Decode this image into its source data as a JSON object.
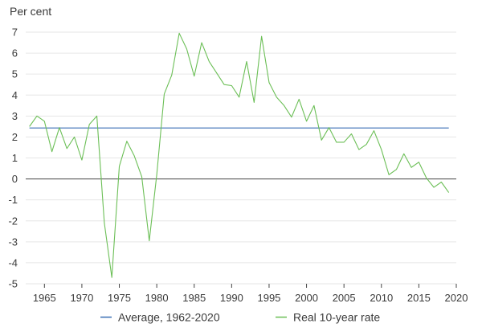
{
  "chart_data": {
    "type": "line",
    "ylabel": "Per cent",
    "ylim": [
      -5,
      7
    ],
    "yticks": [
      -5,
      -4,
      -3,
      -2,
      -1,
      0,
      1,
      2,
      3,
      4,
      5,
      6,
      7
    ],
    "xlim": [
      1962.5,
      2020
    ],
    "xticks": [
      1965,
      1970,
      1975,
      1980,
      1985,
      1990,
      1995,
      2000,
      2005,
      2010,
      2015,
      2020
    ],
    "grid": true,
    "legend_position": "bottom",
    "series": [
      {
        "name": "Average, 1962-2020",
        "color": "#3a6fb5",
        "x": [
          1963,
          2019
        ],
        "y": [
          2.43,
          2.43
        ]
      },
      {
        "name": "Real 10-year rate",
        "color": "#6cbf57",
        "x": [
          1963,
          1964,
          1965,
          1966,
          1967,
          1968,
          1969,
          1970,
          1971,
          1972,
          1973,
          1974,
          1975,
          1976,
          1977,
          1978,
          1979,
          1980,
          1981,
          1982,
          1983,
          1984,
          1985,
          1986,
          1987,
          1988,
          1989,
          1990,
          1991,
          1992,
          1993,
          1994,
          1995,
          1996,
          1997,
          1998,
          1999,
          2000,
          2001,
          2002,
          2003,
          2004,
          2005,
          2006,
          2007,
          2008,
          2009,
          2010,
          2011,
          2012,
          2013,
          2014,
          2015,
          2016,
          2017,
          2018,
          2019
        ],
        "y": [
          2.5,
          3.0,
          2.75,
          1.3,
          2.45,
          1.45,
          2.0,
          0.9,
          2.6,
          3.0,
          -2.1,
          -4.7,
          0.6,
          1.8,
          1.1,
          0.1,
          -2.95,
          0.2,
          4.05,
          4.95,
          6.95,
          6.2,
          4.9,
          6.5,
          5.6,
          5.05,
          4.5,
          4.45,
          3.9,
          5.6,
          3.65,
          6.8,
          4.6,
          3.9,
          3.5,
          2.95,
          3.8,
          2.75,
          3.5,
          1.85,
          2.45,
          1.75,
          1.75,
          2.15,
          1.4,
          1.65,
          2.3,
          1.4,
          0.2,
          0.45,
          1.2,
          0.55,
          0.8,
          0.05,
          -0.4,
          -0.15,
          -0.65
        ]
      }
    ]
  }
}
